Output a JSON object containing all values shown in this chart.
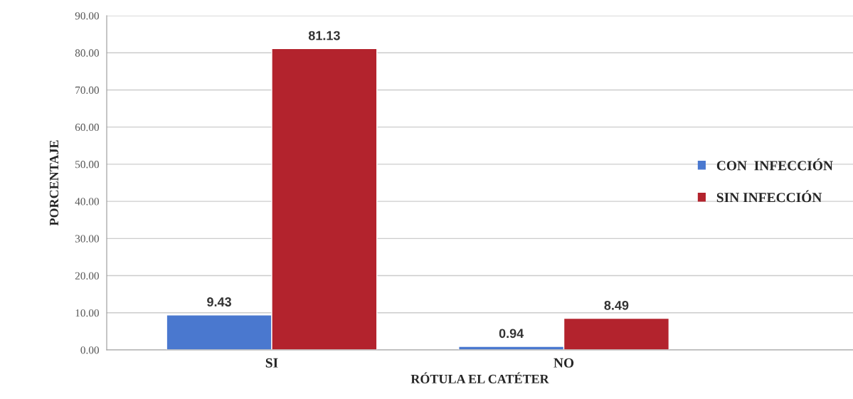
{
  "chart_data": {
    "type": "bar",
    "xlabel": "RÓTULA EL CATÉTER",
    "ylabel": "PORCENTAJE",
    "categories": [
      "SI",
      "NO"
    ],
    "series": [
      {
        "name": "CON  INFECCIÓN",
        "color": "#4a78cf",
        "values": [
          9.43,
          0.94
        ]
      },
      {
        "name": "SIN INFECCIÓN",
        "color": "#b3232d",
        "values": [
          81.13,
          8.49
        ]
      }
    ],
    "ylim": [
      0,
      90
    ],
    "yticks": [
      {
        "value": 0,
        "label": "0.00"
      },
      {
        "value": 10,
        "label": "10.00"
      },
      {
        "value": 20,
        "label": "20.00"
      },
      {
        "value": 30,
        "label": "30.00"
      },
      {
        "value": 40,
        "label": "40.00"
      },
      {
        "value": 50,
        "label": "50.00"
      },
      {
        "value": 60,
        "label": "60.00"
      },
      {
        "value": 70,
        "label": "70.00"
      },
      {
        "value": 80,
        "label": "80.00"
      },
      {
        "value": 90,
        "label": "90.00"
      }
    ],
    "grid": "y",
    "legend": "right",
    "data_labels": true
  }
}
